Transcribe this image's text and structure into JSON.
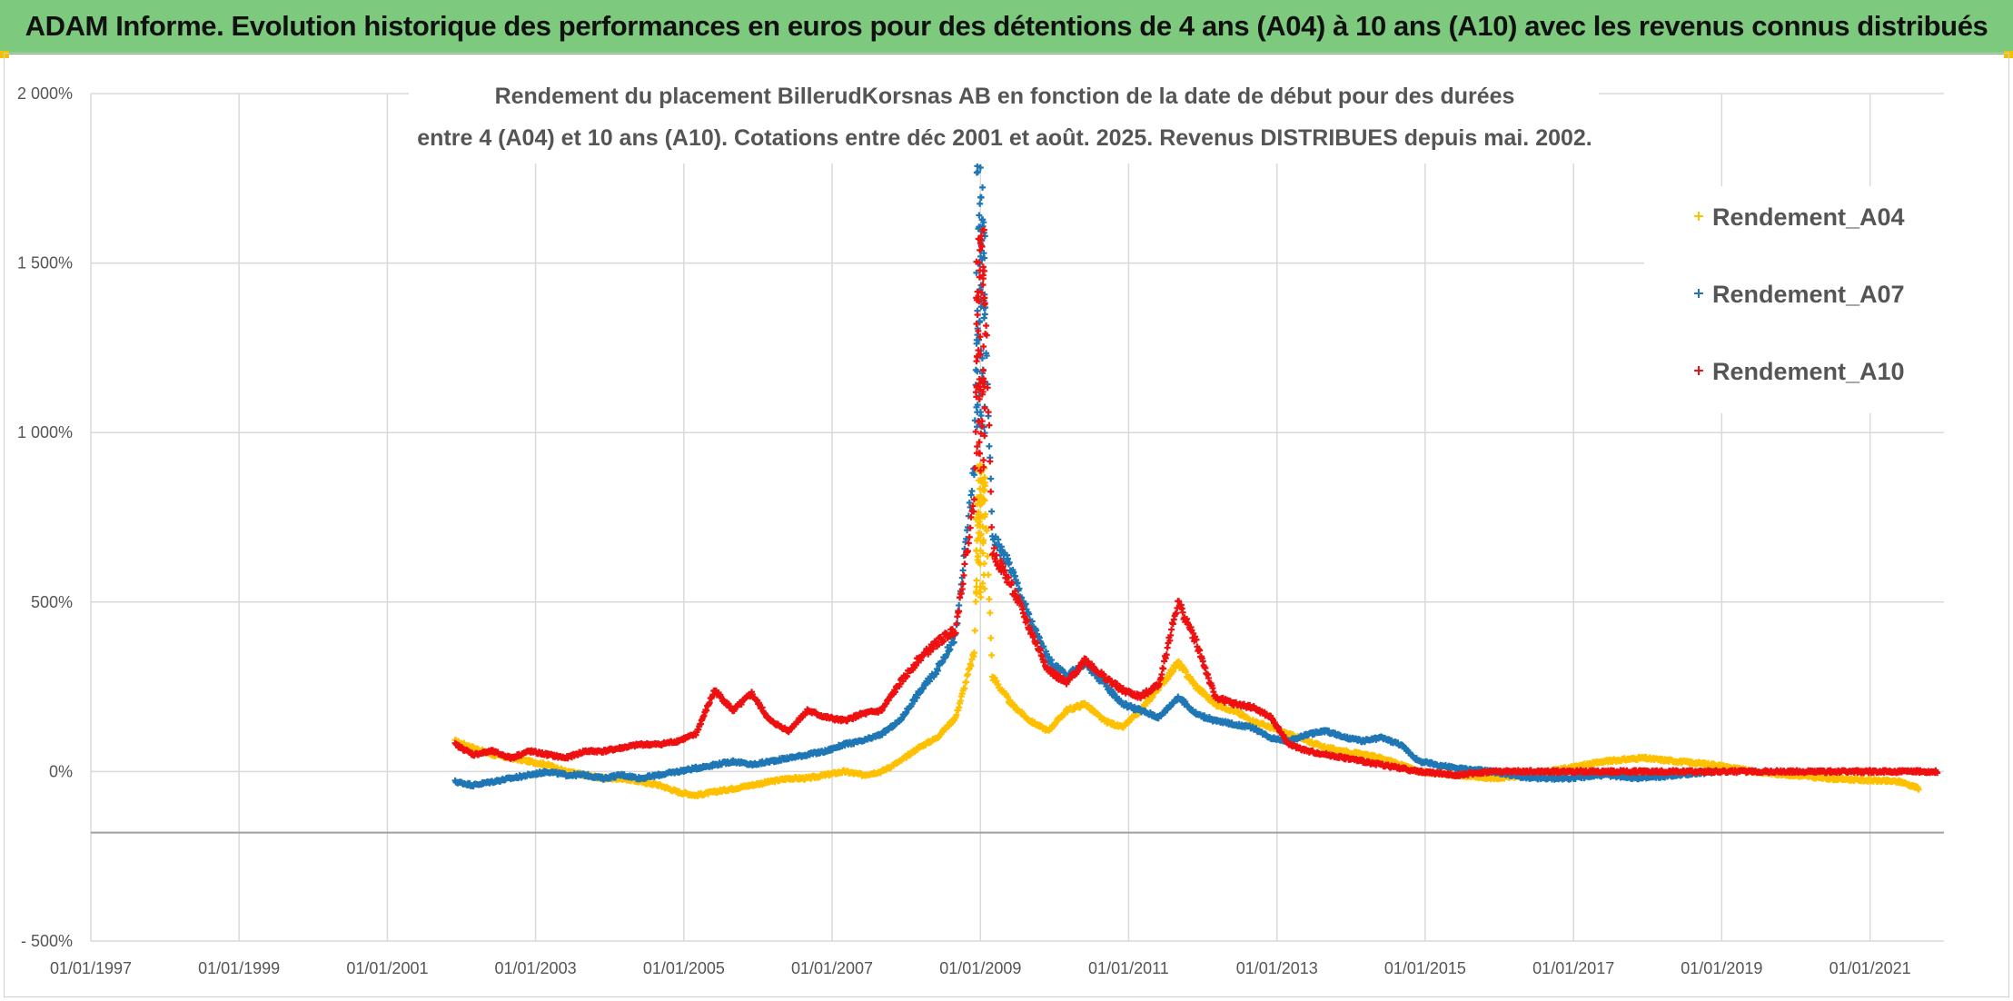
{
  "header": {
    "title": "ADAM Informe. Evolution historique des performances en euros pour des détentions de 4 ans (A04) à 10 ans (A10) avec les revenus connus distribués"
  },
  "colors": {
    "banner": "#7dc97d",
    "A04": "#ffc000",
    "A07": "#1f77b4",
    "A10": "#ee1111",
    "grid": "#d9d9d9"
  },
  "chart_data": {
    "type": "scatter",
    "title_line1": "Rendement du placement BillerudKorsnas AB en fonction de la date de début pour des durées",
    "title_line2": "entre 4 (A04) et 10 ans (A10). Cotations entre déc 2001 et août. 2025. Revenus DISTRIBUES depuis mai. 2002.",
    "xlabel": "",
    "ylabel": "",
    "x_ticks": [
      "01/01/1997",
      "01/01/1999",
      "01/01/2001",
      "01/01/2003",
      "01/01/2005",
      "01/01/2007",
      "01/01/2009",
      "01/01/2011",
      "01/01/2013",
      "01/01/2015",
      "01/01/2017",
      "01/01/2019",
      "01/01/2021"
    ],
    "y_ticks": [
      "2 000%",
      "1 500%",
      "1 000%",
      "500%",
      "0%",
      "- 500%"
    ],
    "y_range": [
      -500,
      2000
    ],
    "x_range": [
      "1997-01-01",
      "2021-12-31"
    ],
    "grid": true,
    "legend_position": "top-right",
    "series": [
      {
        "name": "Rendement_A04",
        "color": "#ffc000",
        "points": [
          [
            "2001-12-01",
            90
          ],
          [
            "2002-03-01",
            70
          ],
          [
            "2002-06-01",
            50
          ],
          [
            "2002-09-01",
            40
          ],
          [
            "2002-12-01",
            30
          ],
          [
            "2003-03-01",
            20
          ],
          [
            "2003-06-01",
            0
          ],
          [
            "2003-09-01",
            -10
          ],
          [
            "2003-12-01",
            -20
          ],
          [
            "2004-03-01",
            -20
          ],
          [
            "2004-06-01",
            -30
          ],
          [
            "2004-09-01",
            -40
          ],
          [
            "2004-12-01",
            -60
          ],
          [
            "2005-03-01",
            -70
          ],
          [
            "2005-06-01",
            -60
          ],
          [
            "2005-09-01",
            -50
          ],
          [
            "2005-12-01",
            -40
          ],
          [
            "2006-03-01",
            -30
          ],
          [
            "2006-06-01",
            -20
          ],
          [
            "2006-09-01",
            -20
          ],
          [
            "2006-12-01",
            -10
          ],
          [
            "2007-03-01",
            0
          ],
          [
            "2007-06-01",
            -10
          ],
          [
            "2007-09-01",
            0
          ],
          [
            "2007-12-01",
            30
          ],
          [
            "2008-03-01",
            70
          ],
          [
            "2008-06-01",
            100
          ],
          [
            "2008-09-01",
            160
          ],
          [
            "2008-12-01",
            350
          ],
          [
            "2009-01-01",
            900
          ],
          [
            "2009-02-01",
            700
          ],
          [
            "2009-03-01",
            280
          ],
          [
            "2009-06-01",
            200
          ],
          [
            "2009-09-01",
            150
          ],
          [
            "2009-12-01",
            120
          ],
          [
            "2010-03-01",
            180
          ],
          [
            "2010-06-01",
            200
          ],
          [
            "2010-09-01",
            150
          ],
          [
            "2010-12-01",
            130
          ],
          [
            "2011-03-01",
            180
          ],
          [
            "2011-06-01",
            250
          ],
          [
            "2011-09-01",
            320
          ],
          [
            "2011-12-01",
            250
          ],
          [
            "2012-03-01",
            200
          ],
          [
            "2012-06-01",
            180
          ],
          [
            "2012-09-01",
            150
          ],
          [
            "2012-12-01",
            130
          ],
          [
            "2013-03-01",
            110
          ],
          [
            "2013-06-01",
            90
          ],
          [
            "2013-09-01",
            70
          ],
          [
            "2013-12-01",
            60
          ],
          [
            "2014-03-01",
            50
          ],
          [
            "2014-06-01",
            40
          ],
          [
            "2014-09-01",
            20
          ],
          [
            "2014-12-01",
            0
          ],
          [
            "2015-06-01",
            -10
          ],
          [
            "2015-12-01",
            -20
          ],
          [
            "2016-06-01",
            -10
          ],
          [
            "2016-12-01",
            10
          ],
          [
            "2017-06-01",
            30
          ],
          [
            "2017-12-01",
            40
          ],
          [
            "2018-06-01",
            30
          ],
          [
            "2018-12-01",
            20
          ],
          [
            "2019-06-01",
            0
          ],
          [
            "2019-12-01",
            -10
          ],
          [
            "2020-06-01",
            -20
          ],
          [
            "2020-12-01",
            -25
          ],
          [
            "2021-06-01",
            -30
          ],
          [
            "2021-09-01",
            -50
          ]
        ]
      },
      {
        "name": "Rendement_A07",
        "color": "#1f77b4",
        "points": [
          [
            "2001-12-01",
            -30
          ],
          [
            "2002-03-01",
            -40
          ],
          [
            "2002-06-01",
            -30
          ],
          [
            "2002-09-01",
            -20
          ],
          [
            "2002-12-01",
            -10
          ],
          [
            "2003-03-01",
            0
          ],
          [
            "2003-06-01",
            -10
          ],
          [
            "2003-09-01",
            -10
          ],
          [
            "2003-12-01",
            -20
          ],
          [
            "2004-03-01",
            -10
          ],
          [
            "2004-06-01",
            -20
          ],
          [
            "2004-09-01",
            -10
          ],
          [
            "2004-12-01",
            0
          ],
          [
            "2005-03-01",
            10
          ],
          [
            "2005-06-01",
            20
          ],
          [
            "2005-09-01",
            30
          ],
          [
            "2005-12-01",
            20
          ],
          [
            "2006-03-01",
            30
          ],
          [
            "2006-06-01",
            40
          ],
          [
            "2006-09-01",
            50
          ],
          [
            "2006-12-01",
            60
          ],
          [
            "2007-03-01",
            80
          ],
          [
            "2007-06-01",
            90
          ],
          [
            "2007-09-01",
            110
          ],
          [
            "2007-12-01",
            150
          ],
          [
            "2008-03-01",
            230
          ],
          [
            "2008-06-01",
            300
          ],
          [
            "2008-09-01",
            400
          ],
          [
            "2008-12-01",
            900
          ],
          [
            "2009-01-01",
            1800
          ],
          [
            "2009-02-01",
            1200
          ],
          [
            "2009-03-01",
            700
          ],
          [
            "2009-06-01",
            600
          ],
          [
            "2009-09-01",
            450
          ],
          [
            "2009-12-01",
            330
          ],
          [
            "2010-03-01",
            280
          ],
          [
            "2010-06-01",
            320
          ],
          [
            "2010-09-01",
            260
          ],
          [
            "2010-12-01",
            200
          ],
          [
            "2011-03-01",
            180
          ],
          [
            "2011-06-01",
            160
          ],
          [
            "2011-09-01",
            220
          ],
          [
            "2011-12-01",
            170
          ],
          [
            "2012-03-01",
            150
          ],
          [
            "2012-06-01",
            140
          ],
          [
            "2012-09-01",
            130
          ],
          [
            "2012-12-01",
            100
          ],
          [
            "2013-03-01",
            90
          ],
          [
            "2013-06-01",
            110
          ],
          [
            "2013-09-01",
            120
          ],
          [
            "2013-12-01",
            100
          ],
          [
            "2014-03-01",
            90
          ],
          [
            "2014-06-01",
            100
          ],
          [
            "2014-09-01",
            80
          ],
          [
            "2014-12-01",
            30
          ],
          [
            "2015-06-01",
            10
          ],
          [
            "2015-12-01",
            0
          ],
          [
            "2016-06-01",
            -20
          ],
          [
            "2016-12-01",
            -20
          ],
          [
            "2017-06-01",
            -10
          ],
          [
            "2017-12-01",
            -20
          ],
          [
            "2018-06-01",
            -10
          ],
          [
            "2018-12-01",
            0
          ]
        ]
      },
      {
        "name": "Rendement_A10",
        "color": "#ee1111",
        "points": [
          [
            "2001-12-01",
            80
          ],
          [
            "2002-03-01",
            50
          ],
          [
            "2002-06-01",
            60
          ],
          [
            "2002-09-01",
            40
          ],
          [
            "2002-12-01",
            60
          ],
          [
            "2003-03-01",
            50
          ],
          [
            "2003-06-01",
            40
          ],
          [
            "2003-09-01",
            60
          ],
          [
            "2003-12-01",
            60
          ],
          [
            "2004-03-01",
            70
          ],
          [
            "2004-06-01",
            80
          ],
          [
            "2004-09-01",
            80
          ],
          [
            "2004-12-01",
            90
          ],
          [
            "2005-03-01",
            110
          ],
          [
            "2005-06-01",
            240
          ],
          [
            "2005-09-01",
            180
          ],
          [
            "2005-12-01",
            230
          ],
          [
            "2006-03-01",
            150
          ],
          [
            "2006-06-01",
            120
          ],
          [
            "2006-09-01",
            180
          ],
          [
            "2006-12-01",
            160
          ],
          [
            "2007-03-01",
            150
          ],
          [
            "2007-06-01",
            170
          ],
          [
            "2007-09-01",
            180
          ],
          [
            "2007-12-01",
            260
          ],
          [
            "2008-03-01",
            330
          ],
          [
            "2008-06-01",
            380
          ],
          [
            "2008-09-01",
            420
          ],
          [
            "2008-12-01",
            800
          ],
          [
            "2009-01-01",
            1600
          ],
          [
            "2009-02-01",
            1250
          ],
          [
            "2009-03-01",
            650
          ],
          [
            "2009-06-01",
            550
          ],
          [
            "2009-09-01",
            420
          ],
          [
            "2009-12-01",
            300
          ],
          [
            "2010-03-01",
            260
          ],
          [
            "2010-06-01",
            330
          ],
          [
            "2010-09-01",
            280
          ],
          [
            "2010-12-01",
            240
          ],
          [
            "2011-03-01",
            220
          ],
          [
            "2011-06-01",
            260
          ],
          [
            "2011-09-01",
            500
          ],
          [
            "2011-12-01",
            380
          ],
          [
            "2012-03-01",
            220
          ],
          [
            "2012-06-01",
            200
          ],
          [
            "2012-09-01",
            190
          ],
          [
            "2012-12-01",
            160
          ],
          [
            "2013-03-01",
            80
          ],
          [
            "2013-06-01",
            60
          ],
          [
            "2013-09-01",
            50
          ],
          [
            "2013-12-01",
            40
          ],
          [
            "2014-03-01",
            30
          ],
          [
            "2014-06-01",
            20
          ],
          [
            "2014-09-01",
            10
          ],
          [
            "2014-12-01",
            0
          ],
          [
            "2015-06-01",
            -10
          ],
          [
            "2015-12-01",
            0
          ],
          [
            "2016-06-01",
            0
          ],
          [
            "2016-12-01",
            0
          ],
          [
            "2017-06-01",
            0
          ],
          [
            "2017-12-01",
            0
          ],
          [
            "2018-06-01",
            0
          ],
          [
            "2018-12-01",
            0
          ],
          [
            "2019-06-01",
            0
          ],
          [
            "2019-12-01",
            0
          ],
          [
            "2020-06-01",
            0
          ],
          [
            "2020-12-01",
            0
          ],
          [
            "2021-06-01",
            0
          ],
          [
            "2021-12-01",
            0
          ]
        ]
      }
    ]
  }
}
